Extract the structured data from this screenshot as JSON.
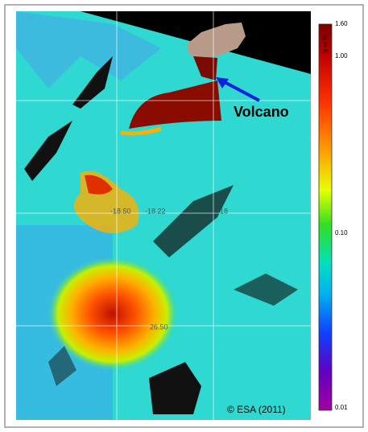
{
  "annotation": "Volcano",
  "credit": "© ESA (2011)",
  "grid_labels": [
    "-18.50",
    "-18.22",
    "-18",
    "26.50"
  ],
  "colorbar": {
    "unit": "(g m-3)",
    "labels": [
      "1.60",
      "1.00",
      "0.10",
      "0.01"
    ]
  }
}
